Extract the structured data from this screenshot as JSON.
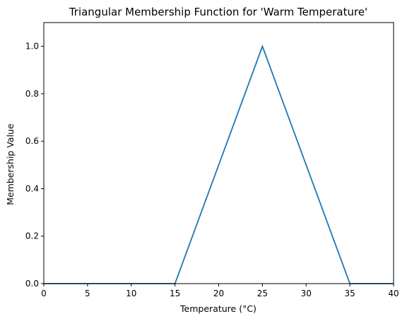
{
  "chart_data": {
    "type": "line",
    "title": "Triangular Membership Function for 'Warm Temperature'",
    "xlabel": "Temperature (°C)",
    "ylabel": "Membership Value",
    "xlim": [
      0,
      40
    ],
    "ylim": [
      0,
      1.1
    ],
    "xticks": [
      0,
      5,
      10,
      15,
      20,
      25,
      30,
      35,
      40
    ],
    "yticks": [
      "0.0",
      "0.2",
      "0.4",
      "0.6",
      "0.8",
      "1.0"
    ],
    "grid": false,
    "series": [
      {
        "color": "#1f77b4",
        "x": [
          0,
          15,
          25,
          35,
          40
        ],
        "y": [
          0,
          0,
          1,
          0,
          0
        ]
      }
    ]
  }
}
